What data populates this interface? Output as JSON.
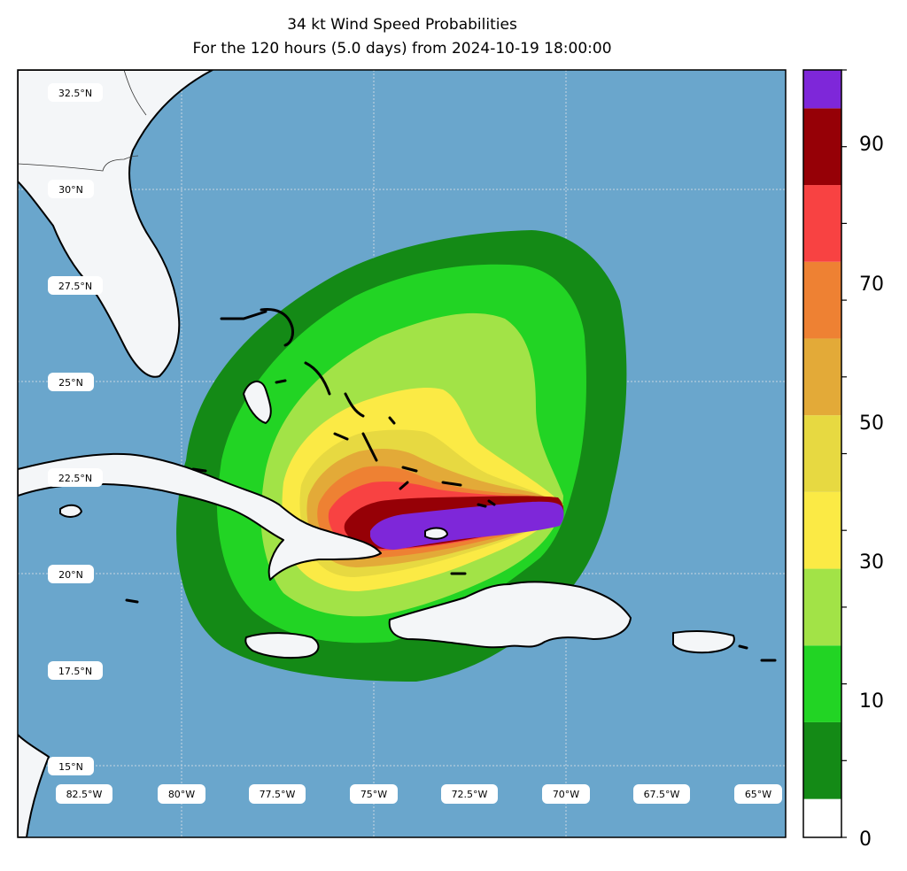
{
  "title": {
    "line1": "34 kt Wind Speed Probabilities",
    "line2": "For the 120 hours (5.0 days) from 2024-10-19 18:00:00"
  },
  "map": {
    "lon_range": [
      -84.0,
      -64.0
    ],
    "lat_range": [
      14.0,
      34.0
    ],
    "ocean_color": "#6aa6cc",
    "land_color": "#f4f6f8",
    "gridline_color": "#c8d7e2",
    "lat_labels": [
      "32.5°N",
      "30°N",
      "27.5°N",
      "25°N",
      "22.5°N",
      "20°N",
      "17.5°N",
      "15°N"
    ],
    "lon_labels": [
      "82.5°W",
      "80°W",
      "77.5°W",
      "75°W",
      "72.5°W",
      "70°W",
      "67.5°W",
      "65°W"
    ]
  },
  "probability_field": {
    "center": {
      "lon": -70.2,
      "lat": 21.1
    },
    "levels_percent": [
      5,
      15,
      25,
      35,
      45,
      55,
      65,
      75,
      85,
      95
    ]
  },
  "colorbar": {
    "min": 0,
    "max": 100,
    "step": 10,
    "colors": [
      "#ffffff",
      "#148a16",
      "#22d424",
      "#a2e347",
      "#fbea45",
      "#e7d941",
      "#e3aa38",
      "#ee8133",
      "#f84242",
      "#960006",
      "#7e27d9"
    ],
    "tick_labels": [
      "0",
      "10",
      "30",
      "50",
      "70",
      "90"
    ]
  }
}
